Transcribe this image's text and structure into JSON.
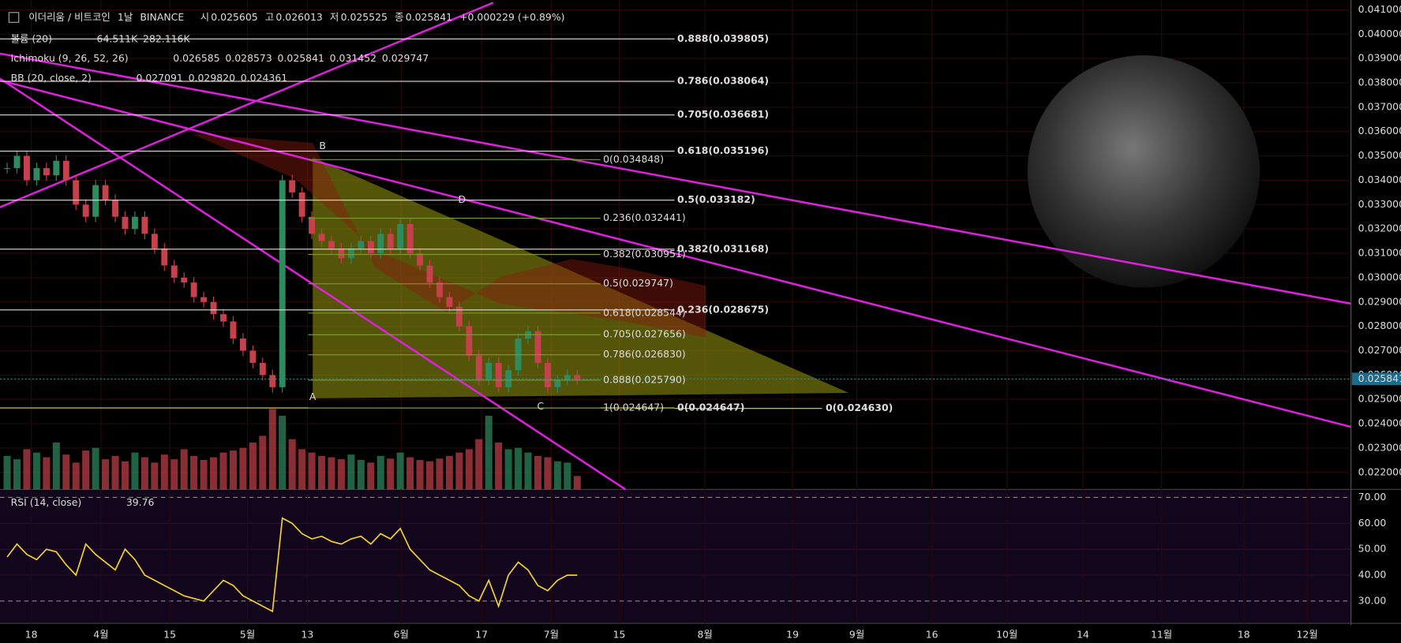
{
  "header": {
    "symbol": "이더리움 / 비트코인",
    "interval": "1날",
    "exchange": "BINANCE",
    "ohlc": [
      {
        "label": "시",
        "value": "0.025605"
      },
      {
        "label": "고",
        "value": "0.026013"
      },
      {
        "label": "저",
        "value": "0.025525"
      },
      {
        "label": "종",
        "value": "0.025841"
      }
    ],
    "change": "+0.000229 (+0.89%)"
  },
  "legends": [
    {
      "name": "볼륨 (20)",
      "values": [
        "64.511K",
        "282.116K"
      ],
      "colors": [
        "#2e9d6e",
        "#f0a060"
      ]
    },
    {
      "name": "Ichimoku (9, 26, 52, 26)",
      "values": [
        "0.026585",
        "0.028573",
        "0.025841",
        "0.031452",
        "0.029747"
      ],
      "colors": [
        "#2f8fe8",
        "#c8303a",
        "#43a047",
        "#6aa84f",
        "#e0303a"
      ]
    },
    {
      "name": "BB (20, close, 2)",
      "values": [
        "0.027091",
        "0.029820",
        "0.024361"
      ],
      "colors": [
        "#ffffff",
        "#ffffff",
        "#ffffff"
      ]
    }
  ],
  "rsi_legend": {
    "name": "RSI (14, close)",
    "value": "39.76"
  },
  "fib_right": [
    {
      "label": "0.888(0.039805)",
      "price": 0.039805
    },
    {
      "label": "0.786(0.038064)",
      "price": 0.038064
    },
    {
      "label": "0.705(0.036681)",
      "price": 0.036681
    },
    {
      "label": "0.618(0.035196)",
      "price": 0.035196
    },
    {
      "label": "0.5(0.033182)",
      "price": 0.033182
    },
    {
      "label": "0.382(0.031168)",
      "price": 0.031168
    },
    {
      "label": "0.236(0.028675)",
      "price": 0.028675
    },
    {
      "label": "0(0.024647)",
      "price": 0.024647
    }
  ],
  "fib_inner": [
    {
      "label": "0(0.034848)",
      "price": 0.034848
    },
    {
      "label": "0.236(0.032441)",
      "price": 0.032441
    },
    {
      "label": "0.382(0.030951)",
      "price": 0.030951
    },
    {
      "label": "0.5(0.029747)",
      "price": 0.029747
    },
    {
      "label": "0.618(0.028544)",
      "price": 0.028544
    },
    {
      "label": "0.705(0.027656)",
      "price": 0.027656
    },
    {
      "label": "0.786(0.026830)",
      "price": 0.02683
    },
    {
      "label": "0.888(0.025790)",
      "price": 0.02579
    },
    {
      "label": "1(0.024647)",
      "price": 0.024647
    }
  ],
  "fib_far": {
    "label": "0(0.024630)",
    "price": 0.02463
  },
  "points": [
    {
      "label": "A",
      "price": 0.0248
    },
    {
      "label": "B",
      "price": 0.0351
    },
    {
      "label": "C",
      "price": 0.0244
    },
    {
      "label": "D",
      "price": 0.0329
    }
  ],
  "last_price": {
    "value": 0.025841,
    "label": "0.025841"
  },
  "chart_data": {
    "type": "candlestick",
    "closes": [
      0.0345,
      0.035,
      0.034,
      0.0345,
      0.0342,
      0.0348,
      0.034,
      0.033,
      0.0325,
      0.0338,
      0.0332,
      0.0325,
      0.032,
      0.0325,
      0.0318,
      0.0312,
      0.0305,
      0.03,
      0.0298,
      0.0292,
      0.029,
      0.0285,
      0.0282,
      0.0275,
      0.027,
      0.0265,
      0.026,
      0.0255,
      0.034,
      0.0335,
      0.0325,
      0.0318,
      0.0315,
      0.0312,
      0.0308,
      0.0312,
      0.0315,
      0.031,
      0.0318,
      0.0312,
      0.0322,
      0.031,
      0.0305,
      0.0298,
      0.0292,
      0.0288,
      0.028,
      0.0268,
      0.0258,
      0.0265,
      0.0255,
      0.0262,
      0.0275,
      0.0278,
      0.0265,
      0.0255,
      0.0258,
      0.026,
      0.0258
    ],
    "volumes": [
      50,
      45,
      60,
      55,
      48,
      70,
      52,
      40,
      58,
      62,
      45,
      50,
      42,
      55,
      48,
      40,
      52,
      45,
      60,
      50,
      44,
      48,
      55,
      58,
      62,
      70,
      80,
      120,
      110,
      75,
      60,
      55,
      50,
      48,
      45,
      52,
      44,
      40,
      50,
      46,
      55,
      48,
      44,
      42,
      46,
      50,
      55,
      60,
      75,
      110,
      70,
      60,
      62,
      55,
      50,
      48,
      42,
      40,
      20
    ],
    "rsi": [
      47,
      52,
      48,
      46,
      50,
      49,
      44,
      40,
      52,
      48,
      45,
      42,
      50,
      46,
      40,
      38,
      36,
      34,
      32,
      31,
      30,
      34,
      38,
      36,
      32,
      30,
      28,
      26,
      62,
      60,
      56,
      54,
      55,
      53,
      52,
      54,
      55,
      52,
      56,
      54,
      58,
      50,
      46,
      42,
      40,
      38,
      36,
      32,
      30,
      38,
      28,
      40,
      45,
      42,
      36,
      34,
      38,
      40,
      40
    ],
    "ylim": [
      0.022,
      0.041
    ],
    "yticks": [
      {
        "value": 0.041,
        "label": "0.041000"
      },
      {
        "value": 0.04,
        "label": "0.040000"
      },
      {
        "value": 0.039,
        "label": "0.039000"
      },
      {
        "value": 0.038,
        "label": "0.038000"
      },
      {
        "value": 0.037,
        "label": "0.037000"
      },
      {
        "value": 0.036,
        "label": "0.036000"
      },
      {
        "value": 0.035,
        "label": "0.035000"
      },
      {
        "value": 0.034,
        "label": "0.034000"
      },
      {
        "value": 0.033,
        "label": "0.033000"
      },
      {
        "value": 0.032,
        "label": "0.032000"
      },
      {
        "value": 0.031,
        "label": "0.031000"
      },
      {
        "value": 0.03,
        "label": "0.030000"
      },
      {
        "value": 0.029,
        "label": "0.029000"
      },
      {
        "value": 0.028,
        "label": "0.028000"
      },
      {
        "value": 0.027,
        "label": "0.027000"
      },
      {
        "value": 0.026,
        "label": "0.026000"
      },
      {
        "value": 0.025,
        "label": "0.025000"
      },
      {
        "value": 0.024,
        "label": "0.024000"
      },
      {
        "value": 0.023,
        "label": "0.023000"
      },
      {
        "value": 0.022,
        "label": "0.022000"
      }
    ],
    "rsi_lim": [
      23,
      73
    ],
    "rsi_ticks": [
      {
        "value": 70,
        "label": "70.00"
      },
      {
        "value": 60,
        "label": "60.00"
      },
      {
        "value": 50,
        "label": "50.00"
      },
      {
        "value": 40,
        "label": "40.00"
      },
      {
        "value": 30,
        "label": "30.00"
      }
    ],
    "x_labels": [
      "18",
      "4월",
      "15",
      "5월",
      "13",
      "6월",
      "17",
      "7월",
      "15",
      "8월",
      "19",
      "9월",
      "16",
      "10월",
      "14",
      "11월",
      "18",
      "12월"
    ],
    "up_color": "#2e8b5f",
    "down_color": "#c5414b"
  }
}
